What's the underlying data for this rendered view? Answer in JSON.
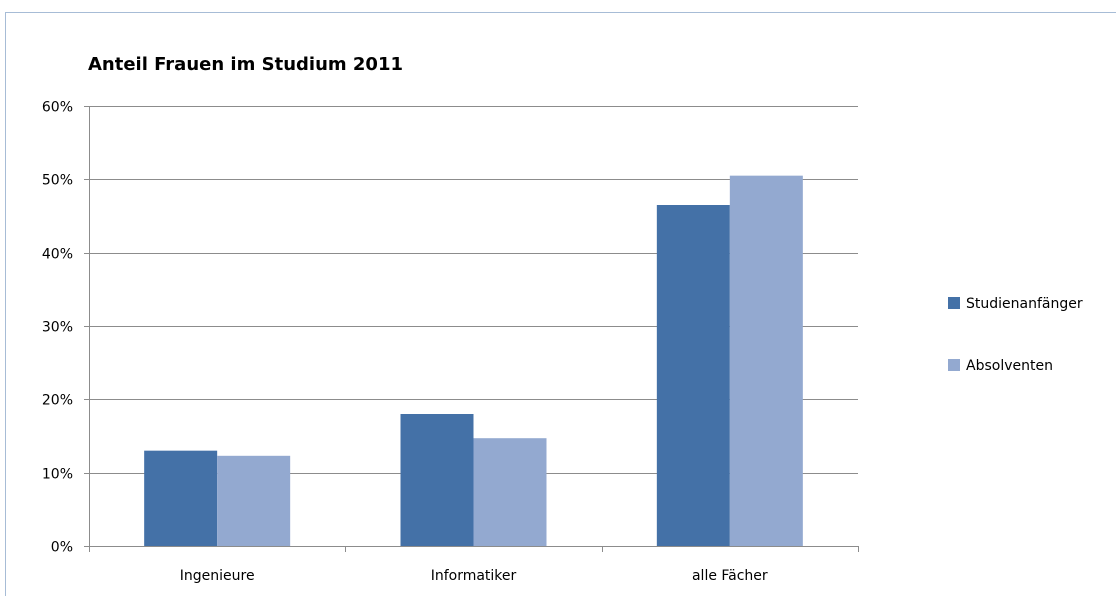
{
  "chart_data": {
    "type": "bar",
    "title": "Anteil Frauen im Studium 2011",
    "xlabel": "",
    "ylabel": "",
    "categories": [
      "Ingenieure",
      "Informatiker",
      "alle Fächer"
    ],
    "series": [
      {
        "name": "Studienanfänger",
        "values": [
          0.13,
          0.18,
          0.465
        ],
        "color": "#4471a7"
      },
      {
        "name": "Absolventen",
        "values": [
          0.123,
          0.147,
          0.505
        ],
        "color": "#93a9d0"
      }
    ],
    "ylim": [
      0,
      0.6
    ],
    "yticks": [
      0,
      0.1,
      0.2,
      0.3,
      0.4,
      0.5,
      0.6
    ],
    "ytick_labels": [
      "0%",
      "10%",
      "20%",
      "30%",
      "40%",
      "50%",
      "60%"
    ],
    "grid": true,
    "legend_position": "right",
    "gridline_color": "#8c8c8c",
    "frame_color": "#a7bcd6"
  }
}
